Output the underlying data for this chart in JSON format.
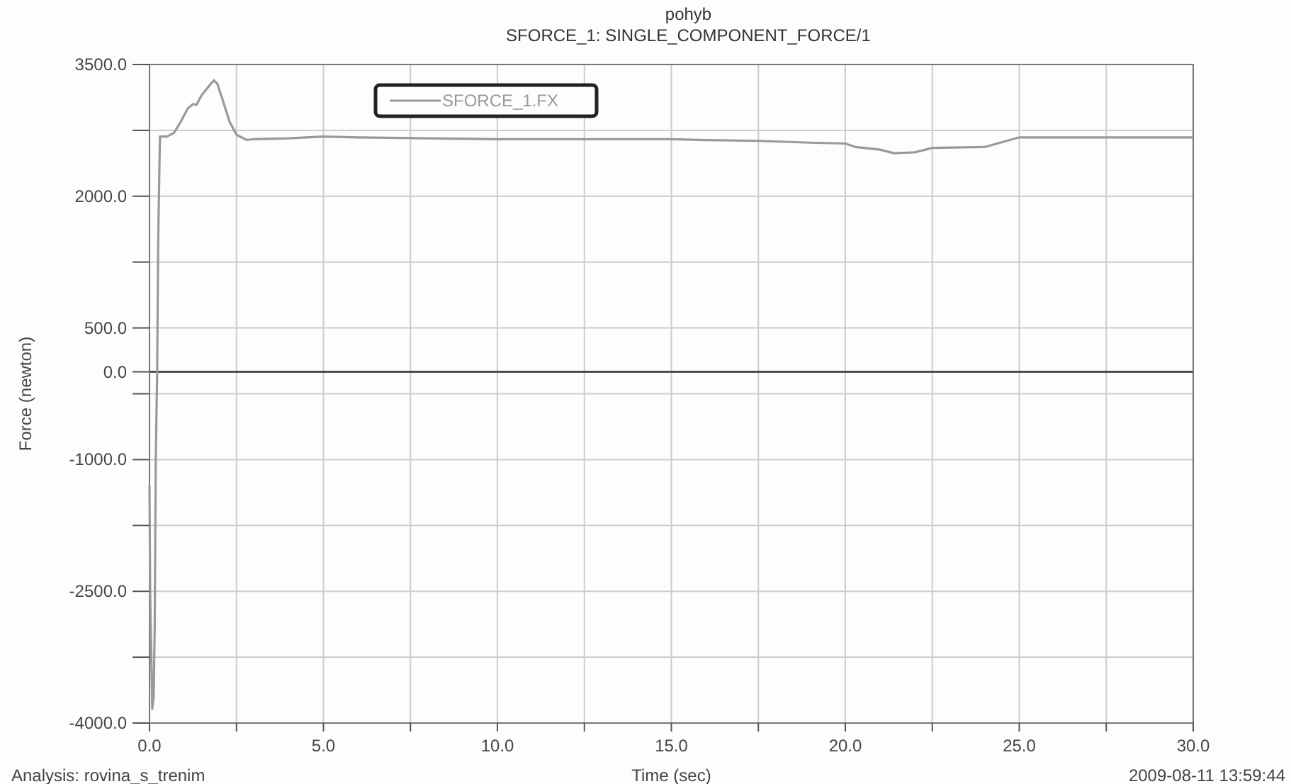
{
  "chart_data": {
    "type": "line",
    "title": "pohyb",
    "subtitle": "SFORCE_1: SINGLE_COMPONENT_FORCE/1",
    "xlabel": "Time (sec)",
    "ylabel": "Force (newton)",
    "annotations": [
      "Analysis: rovina_s_trenim",
      "2009-08-11 13:59:44"
    ],
    "xlim": [
      0,
      30
    ],
    "ylim": [
      -4000,
      3500
    ],
    "xticks": [
      {
        "value": 0,
        "label": "0.0"
      },
      {
        "value": 2.5,
        "label": null
      },
      {
        "value": 5,
        "label": "5.0"
      },
      {
        "value": 7.5,
        "label": null
      },
      {
        "value": 10,
        "label": "10.0"
      },
      {
        "value": 12.5,
        "label": null
      },
      {
        "value": 15,
        "label": "15.0"
      },
      {
        "value": 17.5,
        "label": null
      },
      {
        "value": 20,
        "label": "20.0"
      },
      {
        "value": 22.5,
        "label": null
      },
      {
        "value": 25,
        "label": "25.0"
      },
      {
        "value": 27.5,
        "label": null
      },
      {
        "value": 30,
        "label": "30.0"
      }
    ],
    "yticks": [
      {
        "value": -4000,
        "label": "-4000.0"
      },
      {
        "value": -3250,
        "label": null
      },
      {
        "value": -2500,
        "label": "-2500.0"
      },
      {
        "value": -1750,
        "label": null
      },
      {
        "value": -1000,
        "label": "-1000.0"
      },
      {
        "value": -250,
        "label": null
      },
      {
        "value": 0,
        "label": "0.0"
      },
      {
        "value": 500,
        "label": "500.0"
      },
      {
        "value": 1250,
        "label": null
      },
      {
        "value": 2000,
        "label": "2000.0"
      },
      {
        "value": 2750,
        "label": null
      },
      {
        "value": 3500,
        "label": "3500.0"
      }
    ],
    "grid": true,
    "legend": "top",
    "ref_lines": [
      {
        "axis": "y",
        "value": 0,
        "color": "#333333"
      }
    ],
    "series": [
      {
        "name": "SFORCE_1.FX",
        "color": "#999999",
        "x": [
          0,
          0.02,
          0.08,
          0.12,
          0.15,
          0.18,
          0.22,
          0.25,
          0.3,
          0.5,
          0.7,
          0.9,
          1.1,
          1.25,
          1.35,
          1.5,
          1.7,
          1.85,
          1.95,
          2.1,
          2.3,
          2.5,
          2.8,
          3,
          4,
          5,
          6,
          8,
          10,
          15,
          16,
          17.5,
          19,
          20,
          20.3,
          21,
          21.4,
          22,
          22.5,
          24,
          25,
          30
        ],
        "values": [
          -1300,
          -2550,
          -3840,
          -3700,
          -2900,
          -1000,
          0,
          1500,
          2680,
          2680,
          2720,
          2850,
          3000,
          3050,
          3040,
          3150,
          3250,
          3320,
          3280,
          3100,
          2850,
          2700,
          2640,
          2650,
          2660,
          2680,
          2670,
          2660,
          2650,
          2650,
          2640,
          2630,
          2610,
          2600,
          2560,
          2530,
          2490,
          2500,
          2550,
          2560,
          2670,
          2670
        ]
      }
    ]
  }
}
